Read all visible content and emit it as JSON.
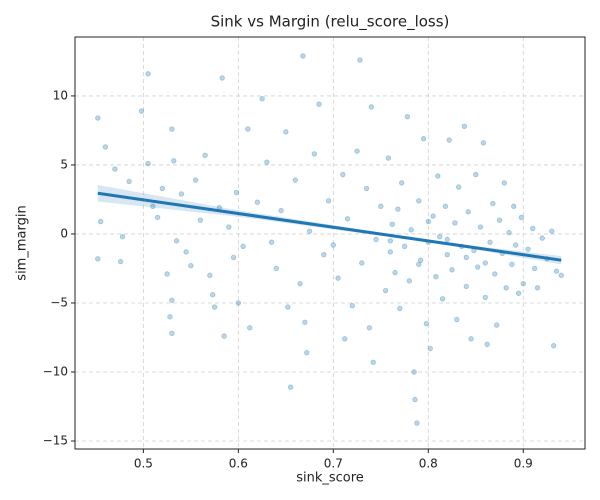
{
  "chart_data": {
    "type": "scatter",
    "title": "Sink vs Margin (relu_score_loss)",
    "x_label": "sink_score",
    "y_label": "sim_margin",
    "xlim": [
      0.428,
      0.965
    ],
    "ylim": [
      -15.58,
      14.27
    ],
    "xticks": [
      0.5,
      0.6,
      0.7,
      0.8,
      0.9
    ],
    "yticks": [
      {
        "value": -15,
        "label": "−15"
      },
      {
        "value": -10,
        "label": "−10"
      },
      {
        "value": -5,
        "label": "−5"
      },
      0,
      5,
      10
    ],
    "grid": true,
    "points": {
      "color": "#1f77b4",
      "x": [
        0.452,
        0.452,
        0.455,
        0.46,
        0.478,
        0.476,
        0.47,
        0.485,
        0.498,
        0.505,
        0.505,
        0.51,
        0.515,
        0.52,
        0.525,
        0.53,
        0.532,
        0.535,
        0.53,
        0.528,
        0.53,
        0.54,
        0.545,
        0.55,
        0.555,
        0.56,
        0.565,
        0.57,
        0.573,
        0.575,
        0.58,
        0.583,
        0.585,
        0.59,
        0.595,
        0.598,
        0.6,
        0.605,
        0.61,
        0.612,
        0.62,
        0.625,
        0.63,
        0.635,
        0.64,
        0.645,
        0.65,
        0.652,
        0.655,
        0.66,
        0.665,
        0.668,
        0.67,
        0.672,
        0.675,
        0.68,
        0.685,
        0.69,
        0.695,
        0.7,
        0.705,
        0.71,
        0.712,
        0.715,
        0.72,
        0.725,
        0.728,
        0.73,
        0.735,
        0.738,
        0.74,
        0.742,
        0.745,
        0.75,
        0.755,
        0.758,
        0.76,
        0.762,
        0.765,
        0.768,
        0.77,
        0.772,
        0.775,
        0.778,
        0.78,
        0.782,
        0.785,
        0.786,
        0.788,
        0.79,
        0.792,
        0.795,
        0.798,
        0.8,
        0.802,
        0.805,
        0.808,
        0.81,
        0.812,
        0.815,
        0.818,
        0.82,
        0.822,
        0.825,
        0.828,
        0.83,
        0.832,
        0.835,
        0.838,
        0.84,
        0.842,
        0.845,
        0.848,
        0.85,
        0.852,
        0.855,
        0.858,
        0.86,
        0.862,
        0.865,
        0.868,
        0.87,
        0.872,
        0.875,
        0.878,
        0.88,
        0.882,
        0.885,
        0.888,
        0.89,
        0.892,
        0.895,
        0.898,
        0.9,
        0.905,
        0.91,
        0.912,
        0.915,
        0.92,
        0.925,
        0.93,
        0.932,
        0.935,
        0.94,
        0.8,
        0.79,
        0.76,
        0.84,
        0.86,
        0.82
      ],
      "values": [
        8.4,
        -1.8,
        0.9,
        6.3,
        -0.2,
        -2.0,
        4.7,
        3.8,
        8.9,
        11.6,
        5.1,
        2.0,
        1.2,
        3.3,
        -2.9,
        7.6,
        5.3,
        -0.5,
        -4.8,
        -6.0,
        -7.2,
        2.9,
        -1.3,
        -2.3,
        3.9,
        1.0,
        5.7,
        -3.0,
        -4.4,
        -5.3,
        1.9,
        11.3,
        -7.4,
        0.5,
        -1.7,
        3.0,
        -5.0,
        -0.9,
        7.6,
        -6.8,
        2.3,
        9.8,
        5.2,
        -0.6,
        -2.5,
        1.7,
        7.4,
        -5.3,
        -11.1,
        3.9,
        -3.6,
        12.9,
        -6.4,
        -8.6,
        0.2,
        5.8,
        9.4,
        -1.5,
        2.4,
        -0.8,
        -3.2,
        4.3,
        -7.6,
        1.1,
        -5.2,
        6.0,
        12.6,
        -2.1,
        3.3,
        -6.8,
        9.2,
        -9.3,
        -0.4,
        2.0,
        -4.1,
        5.5,
        -1.3,
        0.7,
        -2.8,
        1.8,
        -5.4,
        3.7,
        -0.9,
        8.5,
        -3.4,
        0.3,
        -10.0,
        -12.0,
        -13.7,
        2.4,
        -1.9,
        6.9,
        -6.5,
        -0.6,
        -8.3,
        1.3,
        -3.1,
        4.2,
        -0.2,
        -4.7,
        2.0,
        -1.5,
        6.8,
        -2.6,
        0.8,
        -6.2,
        3.4,
        -0.9,
        7.8,
        -3.8,
        1.6,
        -7.6,
        -1.2,
        4.3,
        -2.4,
        0.5,
        6.6,
        -4.6,
        -8.0,
        -0.6,
        2.2,
        -2.9,
        -6.6,
        1.0,
        -1.4,
        3.7,
        -3.9,
        0.1,
        -2.2,
        2.0,
        -0.8,
        -4.3,
        1.2,
        -3.6,
        -1.1,
        0.4,
        -2.5,
        -3.9,
        -0.3,
        -1.8,
        0.2,
        -8.1,
        -2.7,
        -3.0,
        0.9,
        -2.2,
        -0.5,
        -1.7,
        -2.1,
        -0.4
      ]
    },
    "band": {
      "color": "#1f77b4",
      "x": [
        0.452,
        0.6,
        0.75,
        0.85,
        0.94
      ],
      "lower": [
        2.35,
        1.25,
        -0.13,
        -1.13,
        -2.2
      ],
      "upper": [
        3.55,
        1.71,
        0.11,
        -0.87,
        -1.6
      ]
    },
    "fit": {
      "color": "#1f77b4",
      "x": [
        0.452,
        0.94
      ],
      "values": [
        2.95,
        -1.9
      ]
    }
  }
}
